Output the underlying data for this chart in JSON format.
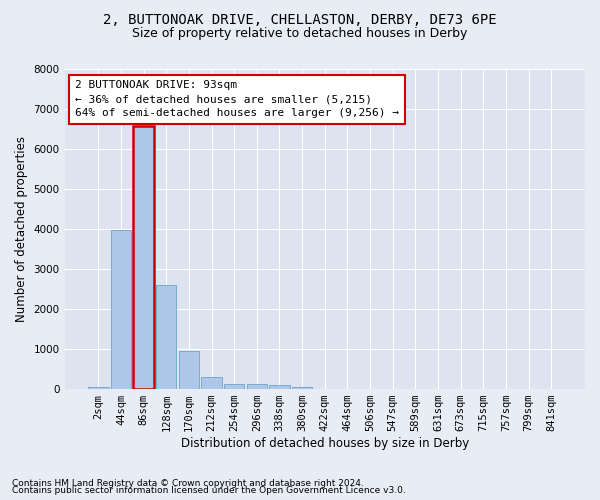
{
  "title": "2, BUTTONOAK DRIVE, CHELLASTON, DERBY, DE73 6PE",
  "subtitle": "Size of property relative to detached houses in Derby",
  "xlabel": "Distribution of detached houses by size in Derby",
  "ylabel": "Number of detached properties",
  "footnote1": "Contains HM Land Registry data © Crown copyright and database right 2024.",
  "footnote2": "Contains public sector information licensed under the Open Government Licence v3.0.",
  "categories": [
    "2sqm",
    "44sqm",
    "86sqm",
    "128sqm",
    "170sqm",
    "212sqm",
    "254sqm",
    "296sqm",
    "338sqm",
    "380sqm",
    "422sqm",
    "464sqm",
    "506sqm",
    "547sqm",
    "589sqm",
    "631sqm",
    "673sqm",
    "715sqm",
    "757sqm",
    "799sqm",
    "841sqm"
  ],
  "values": [
    50,
    3980,
    6580,
    2600,
    960,
    300,
    120,
    120,
    100,
    60,
    0,
    0,
    0,
    0,
    0,
    0,
    0,
    0,
    0,
    0,
    0
  ],
  "bar_color": "#aec6e8",
  "bar_edge_color": "#7aaad0",
  "highlighted_bar_index": 2,
  "highlight_edge_color": "#cc0000",
  "ylim": [
    0,
    8000
  ],
  "yticks": [
    0,
    1000,
    2000,
    3000,
    4000,
    5000,
    6000,
    7000,
    8000
  ],
  "annotation_text": "2 BUTTONOAK DRIVE: 93sqm\n← 36% of detached houses are smaller (5,215)\n64% of semi-detached houses are larger (9,256) →",
  "annotation_box_color": "#ffffff",
  "annotation_box_edge_color": "#cc0000",
  "bg_color": "#e8edf5",
  "plot_bg_color": "#dde4f0",
  "grid_color": "#ffffff",
  "title_fontsize": 10,
  "subtitle_fontsize": 9,
  "annotation_fontsize": 8,
  "axis_label_fontsize": 8.5,
  "tick_fontsize": 7.5,
  "footnote_fontsize": 6.5
}
